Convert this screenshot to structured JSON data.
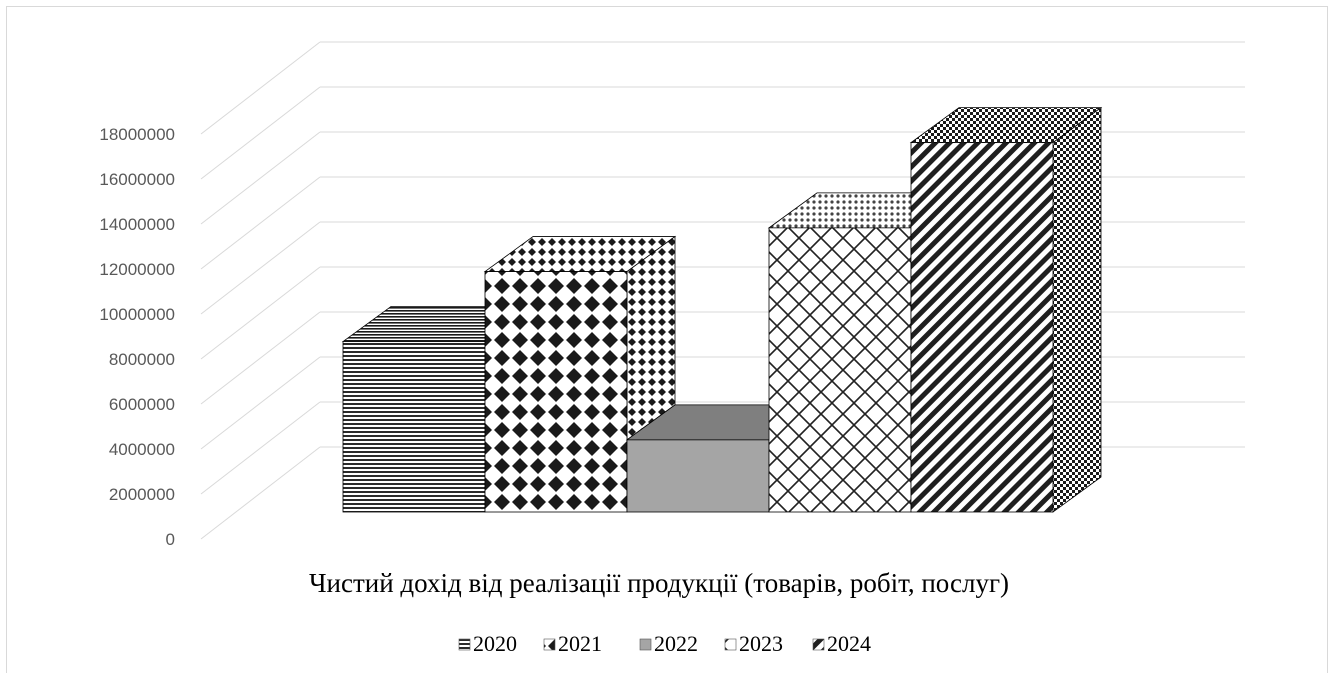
{
  "chart_data": {
    "type": "bar",
    "title": "",
    "xlabel": "",
    "ylabel": "",
    "categories": [
      "Чистий дохід від реалізації продукції (товарів, робіт, послуг)"
    ],
    "series": [
      {
        "name": "2020",
        "values": [
          7800000
        ],
        "pattern": "horizontal-lines"
      },
      {
        "name": "2021",
        "values": [
          11000000
        ],
        "pattern": "diamonds"
      },
      {
        "name": "2022",
        "values": [
          3300000
        ],
        "pattern": "solid-gray"
      },
      {
        "name": "2023",
        "values": [
          13000000
        ],
        "pattern": "lattice"
      },
      {
        "name": "2024",
        "values": [
          16900000
        ],
        "pattern": "diagonal-lines"
      }
    ],
    "ylim": [
      0,
      18000000
    ],
    "yticks": [
      "0",
      "2000000",
      "4000000",
      "6000000",
      "8000000",
      "10000000",
      "12000000",
      "14000000",
      "16000000",
      "18000000"
    ],
    "grid": true,
    "legend": "bottom",
    "style": "3d-column",
    "colors": {
      "gridline": "#d9d9d9",
      "tick_text": "#595959",
      "bar_stroke": "#000000",
      "solid_front": "#a5a5a5",
      "solid_top": "#7f7f7f"
    }
  }
}
